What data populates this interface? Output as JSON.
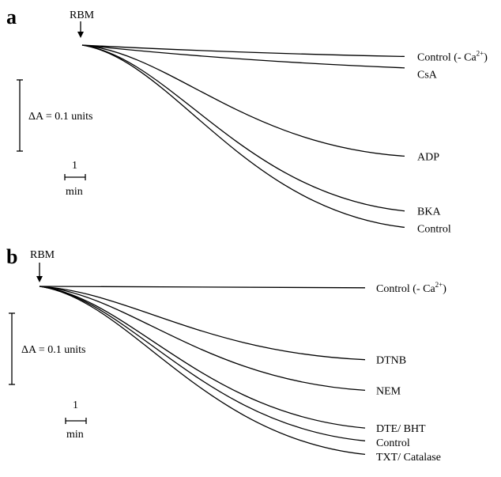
{
  "chart_data": [
    {
      "type": "line",
      "panel_label": "a",
      "marker_label": "RBM",
      "scale_bar_y": "ΔA = 0.1 units",
      "scale_bar_x_value": "1",
      "scale_bar_x_unit": "min",
      "series": [
        {
          "name": "Control (- Ca2+)",
          "label_main": "Control (- Ca",
          "label_sup": "2+",
          "label_end": ")",
          "final_dA": 0.016
        },
        {
          "name": "CsA",
          "label_main": "CsA",
          "final_dA": 0.032
        },
        {
          "name": "ADP",
          "label_main": "ADP",
          "final_dA": 0.156
        },
        {
          "name": "BKA",
          "label_main": "BKA",
          "final_dA": 0.233
        },
        {
          "name": "Control",
          "label_main": "Control",
          "final_dA": 0.256
        }
      ]
    },
    {
      "type": "line",
      "panel_label": "b",
      "marker_label": "RBM",
      "scale_bar_y": "ΔA = 0.1 units",
      "scale_bar_x_value": "1",
      "scale_bar_x_unit": "min",
      "series": [
        {
          "name": "Control (- Ca2+)",
          "label_main": "Control (- Ca",
          "label_sup": "2+",
          "label_end": ")",
          "final_dA": 0.002
        },
        {
          "name": "DTNB",
          "label_main": "DTNB",
          "final_dA": 0.103
        },
        {
          "name": "NEM",
          "label_main": "NEM",
          "final_dA": 0.146
        },
        {
          "name": "DTE/ BHT",
          "label_main": "DTE/ BHT",
          "final_dA": 0.199
        },
        {
          "name": "Control",
          "label_main": "Control",
          "final_dA": 0.217
        },
        {
          "name": "TXT/ Catalase",
          "label_main": "TXT/ Catalase",
          "final_dA": 0.236
        }
      ]
    }
  ]
}
